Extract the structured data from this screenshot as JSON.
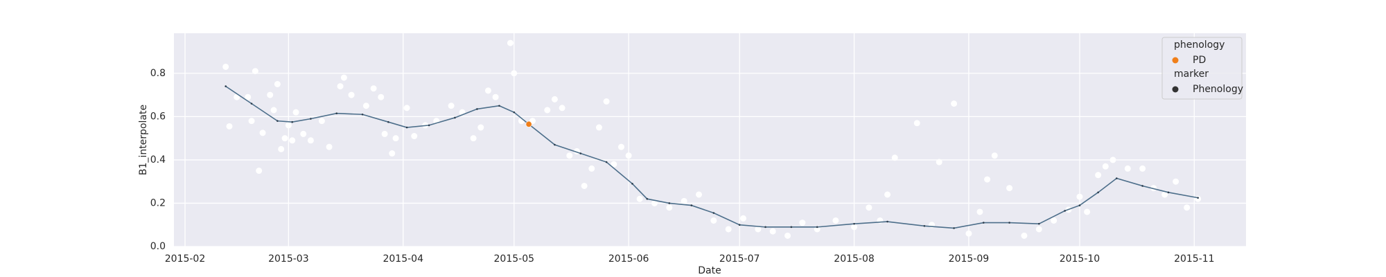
{
  "chart_data": {
    "type": "scatter",
    "x_label": "Date",
    "y_label": "B1_interpolate",
    "xlim": [
      "2015-01-29",
      "2015-11-15"
    ],
    "xticks": [
      "2015-02",
      "2015-03",
      "2015-04",
      "2015-05",
      "2015-06",
      "2015-07",
      "2015-08",
      "2015-09",
      "2015-10",
      "2015-11"
    ],
    "ylim": [
      0,
      0.985
    ],
    "yticks": [
      {
        "value": 0,
        "label": "0.0"
      },
      0.2,
      0.4,
      0.6,
      0.8
    ],
    "grid": true,
    "background": "#eaeaf2",
    "series": [
      {
        "type": "scatter",
        "color": "#ffffff",
        "x": [
          "2015-02-12",
          "2015-02-13",
          "2015-02-15",
          "2015-02-18",
          "2015-02-19",
          "2015-02-20",
          "2015-02-21",
          "2015-02-22",
          "2015-02-24",
          "2015-02-25",
          "2015-02-26",
          "2015-02-27",
          "2015-02-28",
          "2015-03-01",
          "2015-03-02",
          "2015-03-03",
          "2015-03-05",
          "2015-03-07",
          "2015-03-10",
          "2015-03-12",
          "2015-03-15",
          "2015-03-16",
          "2015-03-18",
          "2015-03-22",
          "2015-03-24",
          "2015-03-26",
          "2015-03-27",
          "2015-03-29",
          "2015-03-30",
          "2015-04-02",
          "2015-04-04",
          "2015-04-07",
          "2015-04-10",
          "2015-04-14",
          "2015-04-17",
          "2015-04-20",
          "2015-04-22",
          "2015-04-24",
          "2015-04-26",
          "2015-04-30",
          "2015-05-01",
          "2015-05-03",
          "2015-05-06",
          "2015-05-10",
          "2015-05-12",
          "2015-05-14",
          "2015-05-16",
          "2015-05-18",
          "2015-05-20",
          "2015-05-22",
          "2015-05-24",
          "2015-05-26",
          "2015-05-28",
          "2015-05-30",
          "2015-06-01",
          "2015-06-04",
          "2015-06-08",
          "2015-06-12",
          "2015-06-16",
          "2015-06-20",
          "2015-06-24",
          "2015-06-28",
          "2015-07-02",
          "2015-07-06",
          "2015-07-10",
          "2015-07-14",
          "2015-07-18",
          "2015-07-22",
          "2015-07-27",
          "2015-08-01",
          "2015-08-05",
          "2015-08-08",
          "2015-08-10",
          "2015-08-12",
          "2015-08-18",
          "2015-08-22",
          "2015-08-24",
          "2015-08-28",
          "2015-09-01",
          "2015-09-04",
          "2015-09-06",
          "2015-09-08",
          "2015-09-12",
          "2015-09-16",
          "2015-09-20",
          "2015-09-24",
          "2015-09-28",
          "2015-10-01",
          "2015-10-03",
          "2015-10-06",
          "2015-10-08",
          "2015-10-10",
          "2015-10-14",
          "2015-10-18",
          "2015-10-21",
          "2015-10-24",
          "2015-10-27",
          "2015-10-30",
          "2015-11-02"
        ],
        "values": [
          0.83,
          0.555,
          0.69,
          0.69,
          0.58,
          0.81,
          0.35,
          0.525,
          0.7,
          0.63,
          0.75,
          0.45,
          0.5,
          0.56,
          0.49,
          0.62,
          0.52,
          0.49,
          0.58,
          0.46,
          0.74,
          0.78,
          0.7,
          0.65,
          0.73,
          0.69,
          0.52,
          0.43,
          0.5,
          0.64,
          0.51,
          0.56,
          0.58,
          0.65,
          0.62,
          0.5,
          0.55,
          0.72,
          0.69,
          0.94,
          0.8,
          0.58,
          0.58,
          0.63,
          0.68,
          0.64,
          0.42,
          0.44,
          0.28,
          0.36,
          0.55,
          0.67,
          0.38,
          0.46,
          0.42,
          0.22,
          0.2,
          0.18,
          0.21,
          0.24,
          0.12,
          0.08,
          0.13,
          0.08,
          0.07,
          0.05,
          0.11,
          0.08,
          0.12,
          0.09,
          0.18,
          0.12,
          0.24,
          0.41,
          0.57,
          0.1,
          0.39,
          0.66,
          0.06,
          0.16,
          0.31,
          0.42,
          0.27,
          0.05,
          0.08,
          0.12,
          0.17,
          0.23,
          0.16,
          0.33,
          0.37,
          0.4,
          0.36,
          0.36,
          0.27,
          0.24,
          0.3,
          0.18,
          0.22
        ]
      },
      {
        "type": "line",
        "color": "#4c6e8a",
        "x": [
          "2015-02-12",
          "2015-02-19",
          "2015-02-26",
          "2015-03-02",
          "2015-03-07",
          "2015-03-14",
          "2015-03-21",
          "2015-03-28",
          "2015-04-02",
          "2015-04-08",
          "2015-04-15",
          "2015-04-21",
          "2015-04-27",
          "2015-05-01",
          "2015-05-05",
          "2015-05-12",
          "2015-05-19",
          "2015-05-26",
          "2015-06-02",
          "2015-06-06",
          "2015-06-12",
          "2015-06-18",
          "2015-06-24",
          "2015-07-01",
          "2015-07-08",
          "2015-07-15",
          "2015-07-22",
          "2015-08-01",
          "2015-08-10",
          "2015-08-20",
          "2015-08-28",
          "2015-09-05",
          "2015-09-12",
          "2015-09-20",
          "2015-09-27",
          "2015-10-01",
          "2015-10-06",
          "2015-10-11",
          "2015-10-18",
          "2015-10-25",
          "2015-11-02"
        ],
        "values": [
          0.74,
          0.66,
          0.58,
          0.575,
          0.59,
          0.615,
          0.61,
          0.575,
          0.55,
          0.56,
          0.595,
          0.635,
          0.65,
          0.62,
          0.565,
          0.47,
          0.43,
          0.39,
          0.29,
          0.22,
          0.2,
          0.19,
          0.155,
          0.1,
          0.09,
          0.09,
          0.09,
          0.105,
          0.115,
          0.095,
          0.085,
          0.11,
          0.11,
          0.105,
          0.165,
          0.19,
          0.25,
          0.315,
          0.28,
          0.25,
          0.225
        ]
      },
      {
        "type": "scatter",
        "color": "#f07f1a",
        "x": [
          "2015-05-05"
        ],
        "values": [
          0.565
        ]
      }
    ],
    "legend": {
      "loc": "upper right",
      "sections": [
        {
          "title": "phenology",
          "entries": [
            {
              "label": "PD",
              "color": "#f07f1a"
            }
          ]
        },
        {
          "title": "marker",
          "entries": [
            {
              "label": "Phenology",
              "color": "#333333"
            }
          ]
        }
      ]
    }
  }
}
